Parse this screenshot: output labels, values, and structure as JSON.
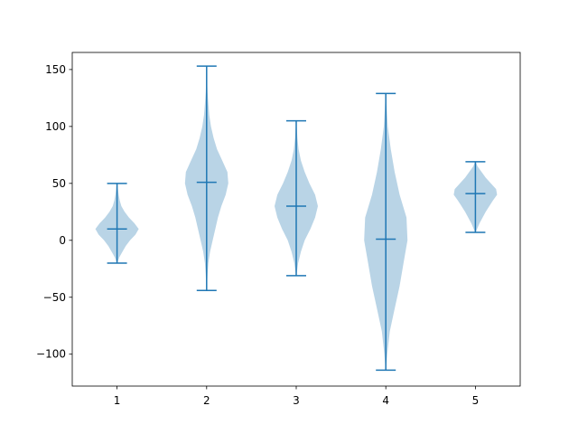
{
  "chart_data": {
    "type": "violin",
    "title": "",
    "xlabel": "",
    "ylabel": "",
    "categories": [
      "1",
      "2",
      "3",
      "4",
      "5"
    ],
    "xlim": [
      0.5,
      5.5
    ],
    "ylim": [
      -128,
      165
    ],
    "yticks": [
      -100,
      -50,
      0,
      50,
      100,
      150
    ],
    "ytick_labels": [
      "−100",
      "−50",
      "0",
      "50",
      "100",
      "150"
    ],
    "grid": false,
    "colors": {
      "body": "#b9d4e6",
      "lines": "#1f77b4"
    },
    "violins": [
      {
        "category": "1",
        "min": -20,
        "max": 50,
        "mean": 10,
        "profile": [
          [
            -20,
            0.2
          ],
          [
            -15,
            2
          ],
          [
            -10,
            5
          ],
          [
            -5,
            8
          ],
          [
            0,
            12
          ],
          [
            5,
            17
          ],
          [
            10,
            20
          ],
          [
            15,
            16
          ],
          [
            20,
            11
          ],
          [
            25,
            7
          ],
          [
            30,
            4
          ],
          [
            35,
            2.5
          ],
          [
            40,
            1.5
          ],
          [
            45,
            0.8
          ],
          [
            50,
            0.3
          ]
        ]
      },
      {
        "category": "2",
        "min": -44,
        "max": 153,
        "mean": 51,
        "profile": [
          [
            -44,
            0.2
          ],
          [
            -30,
            1
          ],
          [
            -20,
            2
          ],
          [
            -10,
            4
          ],
          [
            0,
            7
          ],
          [
            10,
            10
          ],
          [
            20,
            13
          ],
          [
            30,
            17
          ],
          [
            40,
            22
          ],
          [
            50,
            25
          ],
          [
            60,
            24
          ],
          [
            70,
            18
          ],
          [
            80,
            12
          ],
          [
            90,
            8
          ],
          [
            100,
            5
          ],
          [
            110,
            3
          ],
          [
            120,
            2
          ],
          [
            130,
            1
          ],
          [
            140,
            0.5
          ],
          [
            153,
            0.2
          ]
        ]
      },
      {
        "category": "3",
        "min": -31,
        "max": 105,
        "mean": 30,
        "profile": [
          [
            -31,
            0.2
          ],
          [
            -20,
            2
          ],
          [
            -10,
            5
          ],
          [
            0,
            9
          ],
          [
            10,
            15
          ],
          [
            20,
            20
          ],
          [
            30,
            23
          ],
          [
            40,
            20
          ],
          [
            50,
            14
          ],
          [
            60,
            9
          ],
          [
            70,
            5
          ],
          [
            80,
            2.5
          ],
          [
            90,
            1.2
          ],
          [
            100,
            0.5
          ],
          [
            105,
            0.2
          ]
        ]
      },
      {
        "category": "4",
        "min": -114,
        "max": 129,
        "mean": 1,
        "profile": [
          [
            -114,
            0.2
          ],
          [
            -100,
            1.5
          ],
          [
            -80,
            4
          ],
          [
            -60,
            9
          ],
          [
            -40,
            14
          ],
          [
            -20,
            18
          ],
          [
            0,
            22
          ],
          [
            20,
            21
          ],
          [
            40,
            14
          ],
          [
            60,
            9
          ],
          [
            80,
            5
          ],
          [
            100,
            2
          ],
          [
            115,
            1
          ],
          [
            129,
            0.2
          ]
        ]
      },
      {
        "category": "5",
        "min": 7,
        "max": 69,
        "mean": 41,
        "profile": [
          [
            7,
            0.2
          ],
          [
            15,
            4
          ],
          [
            25,
            10
          ],
          [
            35,
            17
          ],
          [
            40,
            21
          ],
          [
            45,
            20
          ],
          [
            50,
            15
          ],
          [
            55,
            10
          ],
          [
            60,
            6
          ],
          [
            65,
            2
          ],
          [
            69,
            0.3
          ]
        ]
      }
    ]
  }
}
